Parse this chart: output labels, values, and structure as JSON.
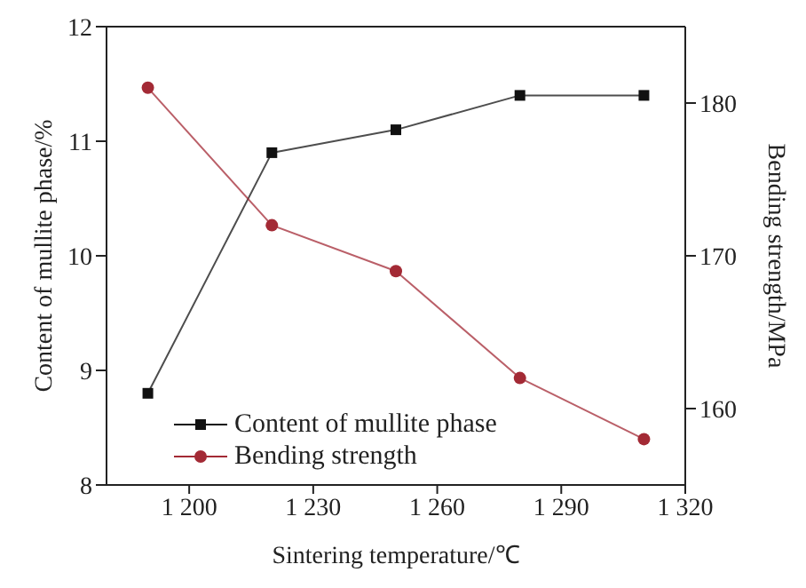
{
  "chart_data": {
    "type": "line",
    "xlabel": "Sintering temperature/℃",
    "ylabel": "Content of mullite phase/%",
    "y2label": "Bending strength/MPa",
    "x": [
      1190,
      1220,
      1250,
      1280,
      1310
    ],
    "series": [
      {
        "name": "Content of mullite phase",
        "color": "#111111",
        "marker": "square",
        "values": [
          8.8,
          10.9,
          11.1,
          11.4,
          11.4
        ]
      },
      {
        "name": "Bending strength",
        "color": "#a32a35",
        "marker": "circle",
        "axis": "y2",
        "values": [
          181,
          172,
          169,
          162,
          158
        ]
      }
    ],
    "xlim": [
      1180,
      1320
    ],
    "xticks": [
      {
        "value": 1200,
        "label": "1 200"
      },
      {
        "value": 1230,
        "label": "1 230"
      },
      {
        "value": 1260,
        "label": "1 260"
      },
      {
        "value": 1290,
        "label": "1 290"
      },
      {
        "value": 1320,
        "label": "1 320"
      }
    ],
    "ylim": [
      8,
      12
    ],
    "yticks": [
      8,
      9,
      10,
      11,
      12
    ],
    "y2lim": [
      155,
      185
    ],
    "y2ticks": [
      160,
      170,
      180
    ],
    "grid": false,
    "legend": "bottom left"
  }
}
